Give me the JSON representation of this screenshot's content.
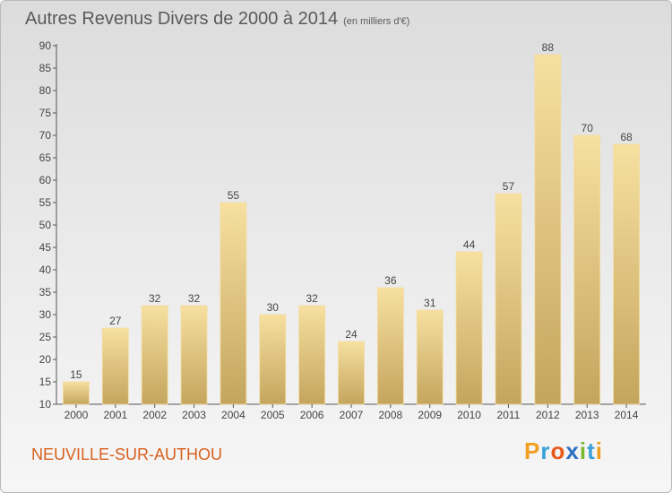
{
  "chart_data": {
    "type": "bar",
    "title": "Autres Revenus Divers de 2000 à 2014",
    "subtitle": "(en milliers d'€)",
    "categories": [
      "2000",
      "2001",
      "2002",
      "2003",
      "2004",
      "2005",
      "2006",
      "2007",
      "2008",
      "2009",
      "2010",
      "2011",
      "2012",
      "2013",
      "2014"
    ],
    "values": [
      15,
      27,
      32,
      32,
      55,
      30,
      32,
      24,
      36,
      31,
      44,
      57,
      88,
      70,
      68
    ],
    "ylim": [
      10,
      90
    ],
    "yticks": [
      10,
      15,
      20,
      25,
      30,
      35,
      40,
      45,
      50,
      55,
      60,
      65,
      70,
      75,
      80,
      85,
      90
    ],
    "grid": false,
    "xlabel": "",
    "ylabel": "",
    "bar_color": "#e8cc86"
  },
  "location": "NEUVILLE-SUR-AUTHOU",
  "logo": {
    "text": "Proxiti",
    "letters": [
      "P",
      "r",
      "o",
      "x",
      "i",
      "t",
      "i"
    ],
    "colors": [
      "#f0a020",
      "#3aa0d8",
      "#e85a1a",
      "#2e6fc0",
      "#7ab830",
      "#3aa0d8",
      "#f0a020"
    ]
  }
}
